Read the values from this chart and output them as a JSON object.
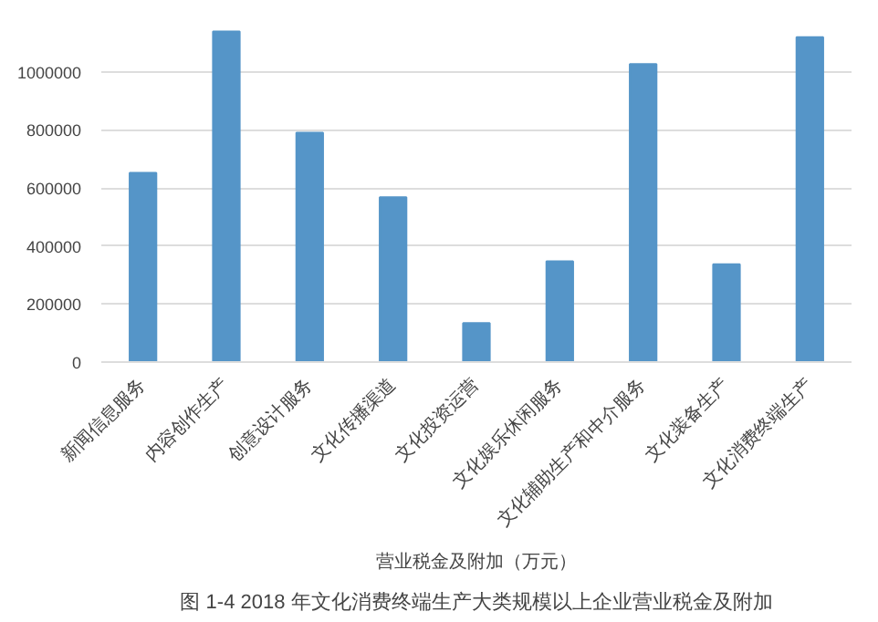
{
  "chart_data": {
    "type": "bar",
    "categories": [
      "新闻信息服务",
      "内容创作生产",
      "创意设计服务",
      "文化传播渠道",
      "文化投资运营",
      "文化娱乐休闲服务",
      "文化辅助生产和中介服务",
      "文化装备生产",
      "文化消费终端生产"
    ],
    "values": [
      652000,
      1139000,
      790000,
      568000,
      134000,
      347000,
      1027000,
      337000,
      1119000
    ],
    "color": "#5595c8",
    "xlabel": "营业税金及附加（万元）",
    "annotations": [
      "图 1-4 2018 年文化消费终端生产大类规模以上企业营业税金及附加"
    ],
    "ylim": [
      0,
      1150000
    ],
    "yticks": [
      0,
      200000,
      400000,
      600000,
      800000,
      1000000
    ],
    "grid": "y"
  }
}
